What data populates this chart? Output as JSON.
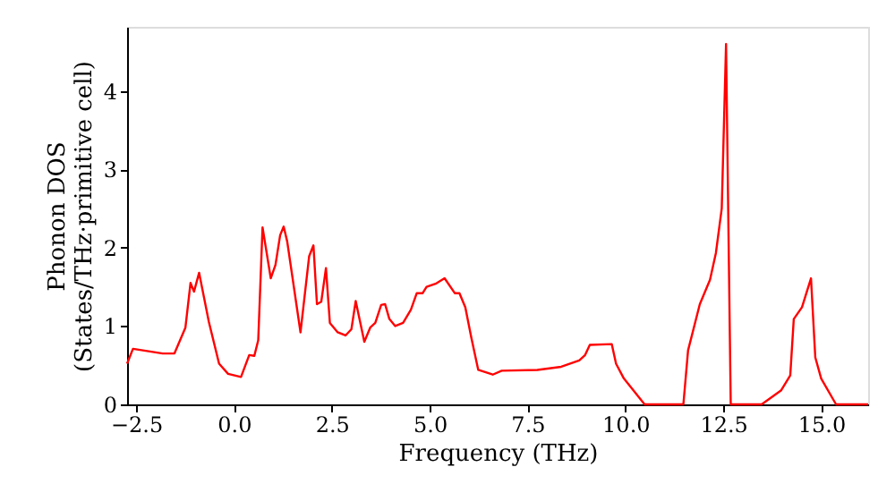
{
  "chart_data": {
    "type": "line",
    "xlabel": "Frequency (THz)",
    "ylabel": "Phonon DOS\n(States/THz·primitive cell)",
    "xlim": [
      -2.73,
      16.2
    ],
    "ylim": [
      0,
      4.82
    ],
    "xticks": [
      {
        "value": -2.5,
        "label": "−2.5"
      },
      {
        "value": 0,
        "label": "0.0"
      },
      2.5,
      {
        "value": 5,
        "label": "5.0"
      },
      7.5,
      {
        "value": 10,
        "label": "10.0"
      },
      12.5,
      {
        "value": 15,
        "label": "15.0"
      }
    ],
    "yticks": [
      0,
      1,
      2,
      3,
      4
    ],
    "grid": false,
    "marker": "none",
    "line_style": "solid",
    "series": [
      {
        "color": "#ff0000",
        "x": [
          -2.73,
          -2.58,
          -1.82,
          -1.52,
          -1.24,
          -1.11,
          -1.02,
          -0.89,
          -0.64,
          -0.38,
          -0.15,
          0.18,
          0.39,
          0.52,
          0.62,
          0.73,
          0.94,
          1.06,
          1.18,
          1.27,
          1.36,
          1.7,
          1.92,
          2.03,
          2.12,
          2.23,
          2.35,
          2.45,
          2.65,
          2.85,
          3.0,
          3.11,
          3.33,
          3.48,
          3.61,
          3.76,
          3.86,
          3.97,
          4.12,
          4.32,
          4.52,
          4.67,
          4.82,
          4.92,
          5.15,
          5.38,
          5.64,
          5.76,
          5.91,
          6.06,
          6.24,
          6.61,
          6.84,
          7.75,
          8.36,
          8.82,
          8.97,
          9.09,
          9.65,
          9.76,
          9.96,
          10.49,
          11.48,
          11.6,
          11.9,
          12.16,
          12.31,
          12.46,
          12.57,
          12.69,
          13.48,
          13.98,
          14.21,
          14.3,
          14.51,
          14.74,
          14.85,
          15.0,
          15.38,
          16.2
        ],
        "values": [
          0.52,
          0.71,
          0.65,
          0.65,
          0.98,
          1.55,
          1.44,
          1.68,
          1.05,
          0.52,
          0.39,
          0.35,
          0.63,
          0.62,
          0.82,
          2.26,
          1.61,
          1.78,
          2.16,
          2.27,
          2.08,
          0.92,
          1.89,
          2.03,
          1.28,
          1.31,
          1.74,
          1.04,
          0.92,
          0.88,
          0.96,
          1.32,
          0.8,
          0.98,
          1.04,
          1.27,
          1.28,
          1.09,
          1.0,
          1.04,
          1.21,
          1.42,
          1.42,
          1.5,
          1.54,
          1.61,
          1.42,
          1.42,
          1.24,
          0.86,
          0.44,
          0.38,
          0.43,
          0.44,
          0.48,
          0.56,
          0.63,
          0.76,
          0.77,
          0.52,
          0.33,
          0,
          0,
          0.69,
          1.28,
          1.59,
          1.93,
          2.5,
          4.6,
          0,
          0,
          0.18,
          0.37,
          1.09,
          1.24,
          1.61,
          0.6,
          0.33,
          0,
          0
        ]
      }
    ]
  }
}
